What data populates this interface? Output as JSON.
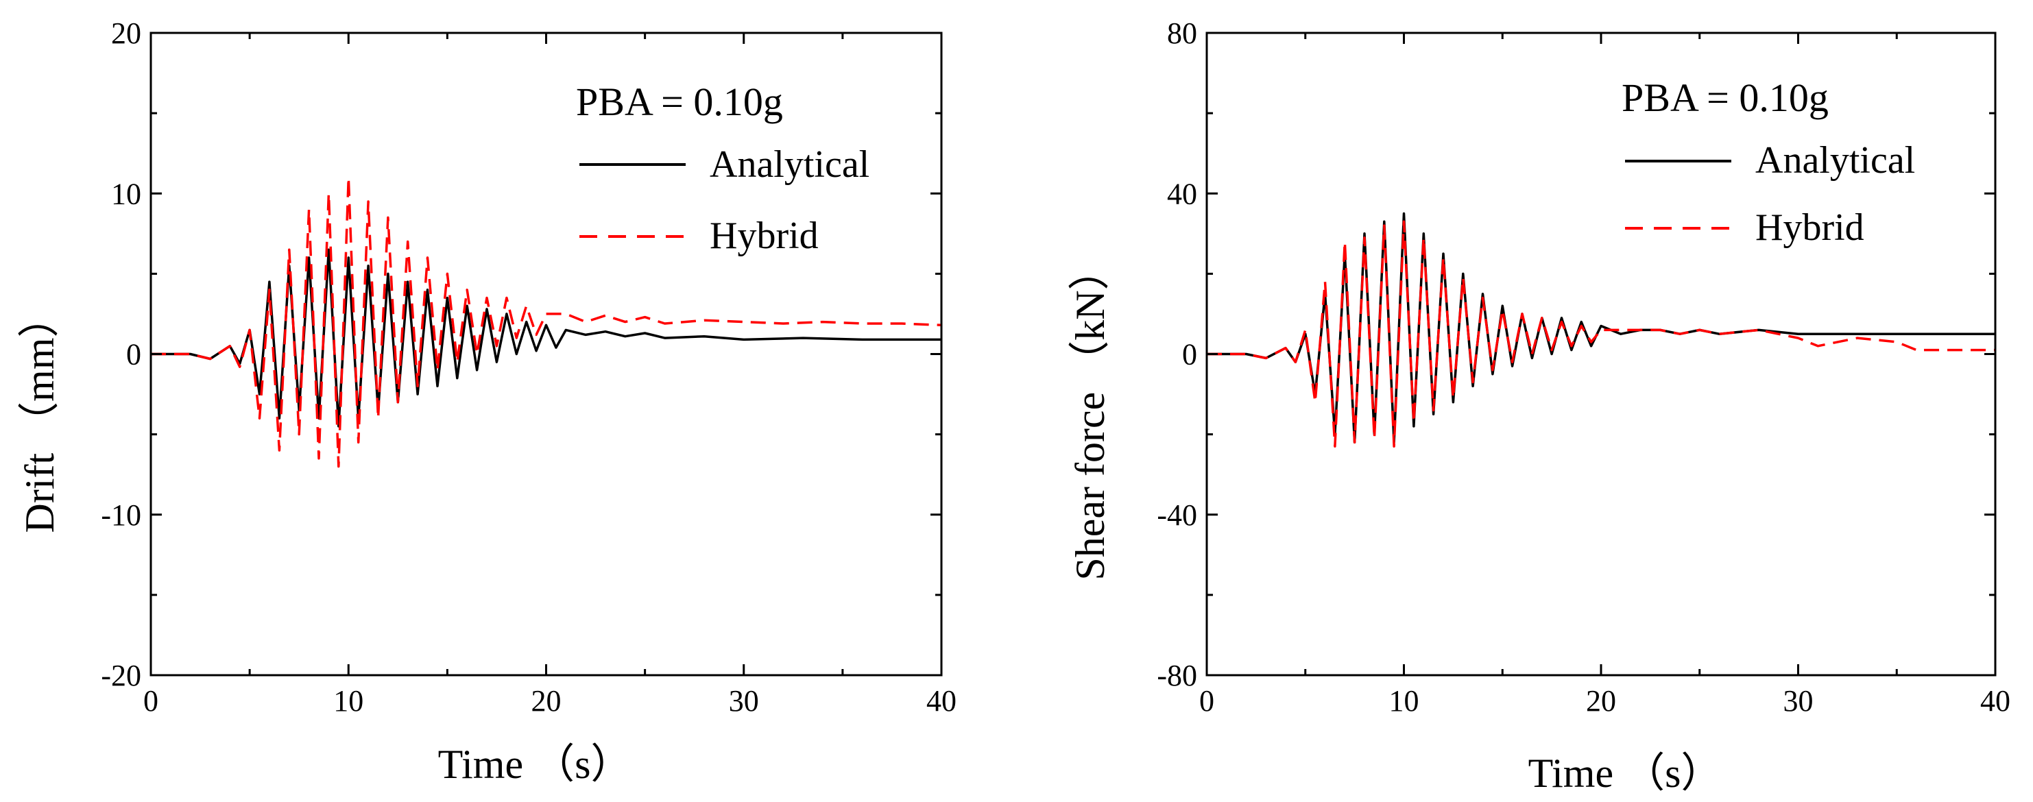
{
  "colors": {
    "analytical": "#000000",
    "hybrid": "#ff0000",
    "axis": "#000000"
  },
  "chart_data": [
    {
      "type": "line",
      "title": "",
      "annotation": "PBA = 0.10g",
      "xlabel": "Time  （s）",
      "ylabel": "Drift  （mm）",
      "xlim": [
        0,
        40
      ],
      "ylim": [
        -20,
        20
      ],
      "xticks": [
        0,
        10,
        20,
        30,
        40
      ],
      "yticks": [
        -20,
        -10,
        0,
        10,
        20
      ],
      "legend": "top-right",
      "grid": false,
      "series": [
        {
          "name": "Analytical",
          "style": "solid",
          "color": "#000000",
          "x": [
            0,
            2,
            3,
            4,
            4.5,
            5,
            5.5,
            6,
            6.5,
            7,
            7.5,
            8,
            8.5,
            9,
            9.5,
            10,
            10.5,
            11,
            11.5,
            12,
            12.5,
            13,
            13.5,
            14,
            14.5,
            15,
            15.5,
            16,
            16.5,
            17,
            17.5,
            18,
            18.5,
            19,
            19.5,
            20,
            20.5,
            21,
            22,
            23,
            24,
            25,
            26,
            28,
            30,
            33,
            36,
            40
          ],
          "y": [
            0,
            0,
            -0.3,
            0.5,
            -0.6,
            1.5,
            -2.5,
            4.5,
            -4,
            5.5,
            -3.5,
            6,
            -4,
            6.5,
            -4.5,
            6,
            -4,
            5.5,
            -3.5,
            5,
            -3,
            4.5,
            -2.5,
            4,
            -2,
            3.5,
            -1.5,
            3,
            -1,
            2.8,
            -0.5,
            2.5,
            0,
            2,
            0.2,
            1.8,
            0.4,
            1.5,
            1.2,
            1.4,
            1.1,
            1.3,
            1,
            1.1,
            0.9,
            1,
            0.9,
            0.9
          ]
        },
        {
          "name": "Hybrid",
          "style": "dashed",
          "color": "#ff0000",
          "x": [
            0,
            2,
            3,
            4,
            4.5,
            5,
            5.5,
            6,
            6.5,
            7,
            7.5,
            8,
            8.5,
            9,
            9.5,
            10,
            10.5,
            11,
            11.5,
            12,
            12.5,
            13,
            13.5,
            14,
            14.5,
            15,
            15.5,
            16,
            16.5,
            17,
            17.5,
            18,
            18.5,
            19,
            19.5,
            20,
            21,
            22,
            23,
            24,
            25,
            26,
            28,
            30,
            32,
            34,
            36,
            38,
            40
          ],
          "y": [
            0,
            0,
            -0.3,
            0.5,
            -0.8,
            1.5,
            -4,
            4,
            -6,
            6.5,
            -5,
            9,
            -6.5,
            10,
            -7,
            11,
            -5.5,
            9.5,
            -4,
            8.5,
            -3,
            7,
            -2,
            6,
            -1,
            5,
            -0.5,
            4,
            0,
            3.5,
            0.5,
            3.5,
            1,
            3,
            1.2,
            2.5,
            2.5,
            2,
            2.4,
            2,
            2.3,
            1.9,
            2.1,
            2,
            1.9,
            2,
            1.9,
            1.9,
            1.8
          ]
        }
      ]
    },
    {
      "type": "line",
      "title": "",
      "annotation": "PBA = 0.10g",
      "xlabel": "Time  （s）",
      "ylabel": "Shear force  （kN）",
      "xlim": [
        0,
        40
      ],
      "ylim": [
        -80,
        80
      ],
      "xticks": [
        0,
        10,
        20,
        30,
        40
      ],
      "yticks": [
        -80,
        -40,
        0,
        40,
        80
      ],
      "legend": "top-right",
      "grid": false,
      "series": [
        {
          "name": "Analytical",
          "style": "solid",
          "color": "#000000",
          "x": [
            0,
            2,
            3,
            4,
            4.5,
            5,
            5.5,
            6,
            6.5,
            7,
            7.5,
            8,
            8.5,
            9,
            9.5,
            10,
            10.5,
            11,
            11.5,
            12,
            12.5,
            13,
            13.5,
            14,
            14.5,
            15,
            15.5,
            16,
            16.5,
            17,
            17.5,
            18,
            18.5,
            19,
            19.5,
            20,
            21,
            22,
            23,
            24,
            25,
            26,
            28,
            30,
            33,
            36,
            40
          ],
          "y": [
            0,
            0,
            -1,
            1.5,
            -2,
            5,
            -10,
            15,
            -20,
            25,
            -22,
            30,
            -20,
            33,
            -22,
            35,
            -18,
            30,
            -15,
            25,
            -12,
            20,
            -8,
            15,
            -5,
            12,
            -3,
            10,
            -1,
            9,
            0,
            9,
            1,
            8,
            2,
            7,
            5,
            6,
            6,
            5,
            6,
            5,
            6,
            5,
            5,
            5,
            5
          ]
        },
        {
          "name": "Hybrid",
          "style": "dashed",
          "color": "#ff0000",
          "x": [
            0,
            2,
            3,
            4,
            4.5,
            5,
            5.5,
            6,
            6.5,
            7,
            7.5,
            8,
            8.5,
            9,
            9.5,
            10,
            10.5,
            11,
            11.5,
            12,
            12.5,
            13,
            13.5,
            14,
            14.5,
            15,
            15.5,
            16,
            16.5,
            17,
            17.5,
            18,
            18.5,
            19,
            19.5,
            20,
            21,
            22,
            23,
            24,
            25,
            26,
            28,
            30,
            31,
            33,
            35,
            36,
            38,
            40
          ],
          "y": [
            0,
            0,
            -1,
            1.5,
            -2,
            6,
            -12,
            18,
            -23,
            28,
            -22,
            29,
            -21,
            32,
            -23,
            33,
            -17,
            29,
            -14,
            24,
            -11,
            19,
            -7,
            14,
            -4,
            11,
            -2,
            10,
            0,
            9,
            1,
            8,
            2,
            7,
            3,
            6,
            6,
            6,
            6,
            5,
            6,
            5,
            6,
            4,
            2,
            4,
            3,
            1,
            1,
            1
          ]
        }
      ]
    }
  ]
}
